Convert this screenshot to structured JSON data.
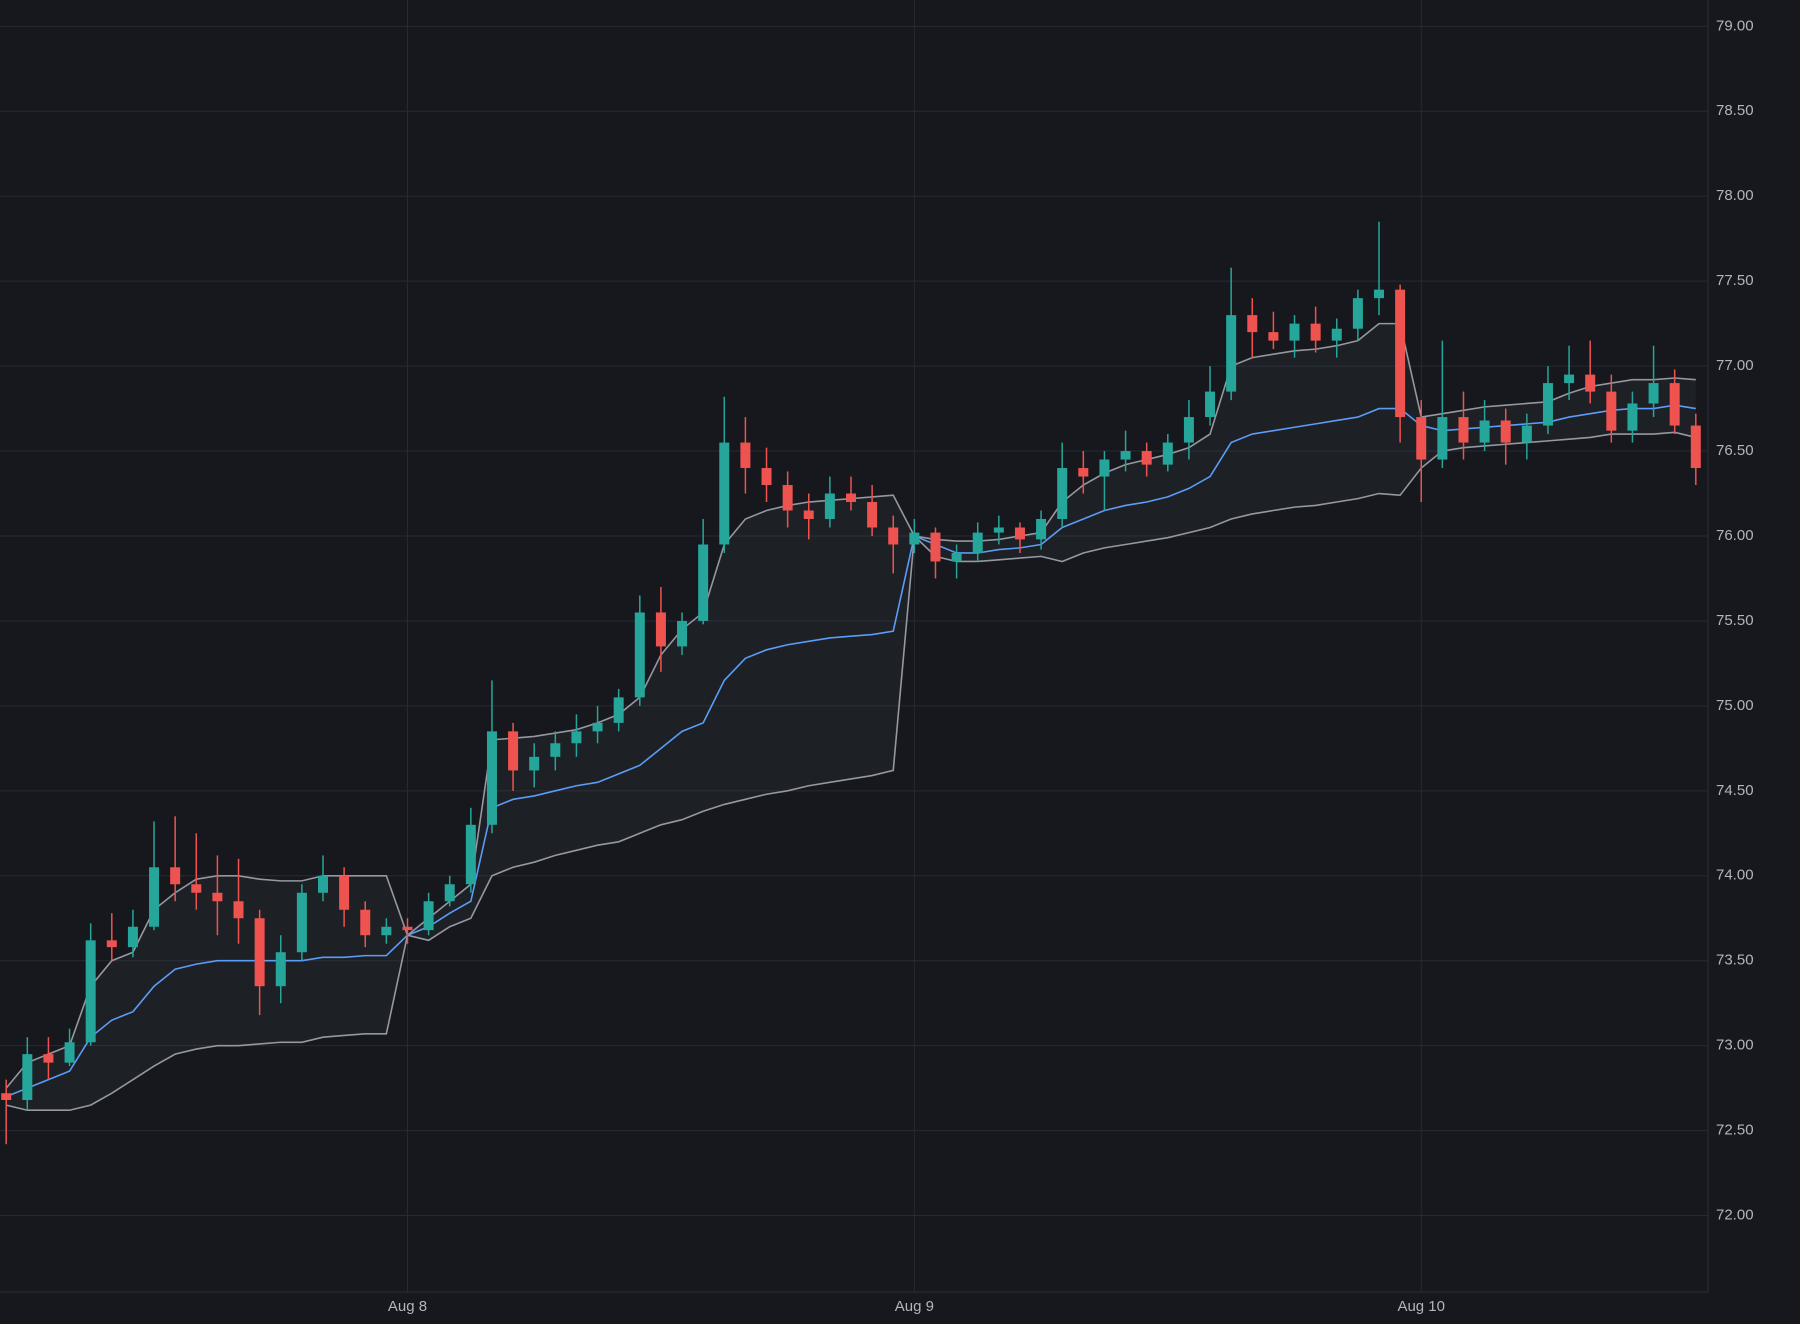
{
  "chart_data": {
    "type": "candlestick",
    "categories": [
      null,
      null,
      null,
      null,
      null,
      null,
      null,
      null,
      null,
      null,
      null,
      null,
      null,
      null,
      null,
      null,
      null,
      null,
      null,
      "Aug 8",
      null,
      null,
      null,
      null,
      null,
      null,
      null,
      null,
      null,
      null,
      null,
      null,
      null,
      null,
      null,
      null,
      null,
      null,
      null,
      null,
      null,
      null,
      null,
      "Aug 9",
      null,
      null,
      null,
      null,
      null,
      null,
      null,
      null,
      null,
      null,
      null,
      null,
      null,
      null,
      null,
      null,
      null,
      null,
      null,
      null,
      null,
      null,
      null,
      "Aug 10",
      null,
      null,
      null,
      null,
      null,
      null,
      null,
      null,
      null,
      null,
      null,
      null,
      null
    ],
    "open": [
      72.72,
      72.68,
      72.95,
      72.9,
      73.02,
      73.62,
      73.58,
      73.7,
      74.05,
      73.95,
      73.9,
      73.85,
      73.75,
      73.35,
      73.55,
      73.9,
      74.0,
      73.8,
      73.65,
      73.7,
      73.68,
      73.85,
      73.95,
      74.3,
      74.85,
      74.62,
      74.7,
      74.78,
      74.85,
      74.9,
      75.05,
      75.55,
      75.35,
      75.5,
      75.95,
      76.55,
      76.4,
      76.3,
      76.15,
      76.1,
      76.25,
      76.2,
      76.05,
      75.95,
      76.02,
      75.85,
      75.9,
      76.02,
      76.05,
      75.98,
      76.1,
      76.4,
      76.35,
      76.45,
      76.5,
      76.42,
      76.55,
      76.7,
      76.85,
      77.3,
      77.2,
      77.15,
      77.25,
      77.15,
      77.22,
      77.4,
      77.45,
      76.7,
      76.45,
      76.7,
      76.55,
      76.68,
      76.55,
      76.65,
      76.9,
      76.95,
      76.85,
      76.62,
      76.78,
      76.9,
      76.65
    ],
    "high": [
      72.8,
      73.05,
      73.05,
      73.1,
      73.72,
      73.78,
      73.8,
      74.32,
      74.35,
      74.25,
      74.12,
      74.1,
      73.8,
      73.65,
      73.95,
      74.12,
      74.05,
      73.85,
      73.75,
      73.75,
      73.9,
      74.0,
      74.4,
      75.15,
      74.9,
      74.78,
      74.85,
      74.95,
      75.0,
      75.1,
      75.65,
      75.7,
      75.55,
      76.1,
      76.82,
      76.7,
      76.52,
      76.38,
      76.25,
      76.35,
      76.35,
      76.3,
      76.12,
      76.1,
      76.05,
      75.95,
      76.08,
      76.12,
      76.08,
      76.15,
      76.55,
      76.5,
      76.5,
      76.62,
      76.55,
      76.6,
      76.8,
      77.0,
      77.58,
      77.4,
      77.32,
      77.3,
      77.35,
      77.28,
      77.45,
      77.85,
      77.48,
      76.8,
      77.15,
      76.85,
      76.8,
      76.75,
      76.72,
      77.0,
      77.12,
      77.15,
      76.95,
      76.85,
      77.12,
      76.98,
      76.72
    ],
    "low": [
      72.42,
      72.62,
      72.8,
      72.88,
      73.0,
      73.5,
      73.52,
      73.68,
      73.85,
      73.8,
      73.65,
      73.6,
      73.18,
      73.25,
      73.5,
      73.85,
      73.7,
      73.58,
      73.6,
      73.6,
      73.65,
      73.82,
      73.9,
      74.25,
      74.5,
      74.52,
      74.62,
      74.7,
      74.78,
      74.85,
      75.0,
      75.2,
      75.3,
      75.48,
      75.9,
      76.25,
      76.2,
      76.05,
      75.98,
      76.05,
      76.15,
      76.0,
      75.78,
      75.9,
      75.75,
      75.75,
      75.85,
      75.95,
      75.9,
      75.92,
      76.05,
      76.25,
      76.15,
      76.38,
      76.35,
      76.38,
      76.45,
      76.65,
      76.8,
      77.05,
      77.1,
      77.05,
      77.08,
      77.05,
      77.15,
      77.3,
      76.55,
      76.2,
      76.4,
      76.45,
      76.5,
      76.42,
      76.45,
      76.6,
      76.8,
      76.78,
      76.55,
      76.55,
      76.7,
      76.6,
      76.3
    ],
    "close": [
      72.68,
      72.95,
      72.9,
      73.02,
      73.62,
      73.58,
      73.7,
      74.05,
      73.95,
      73.9,
      73.85,
      73.75,
      73.35,
      73.55,
      73.9,
      74.0,
      73.8,
      73.65,
      73.7,
      73.68,
      73.85,
      73.95,
      74.3,
      74.85,
      74.62,
      74.7,
      74.78,
      74.85,
      74.9,
      75.05,
      75.55,
      75.35,
      75.5,
      75.95,
      76.55,
      76.4,
      76.3,
      76.15,
      76.1,
      76.25,
      76.2,
      76.05,
      75.95,
      76.02,
      75.85,
      75.9,
      76.02,
      76.05,
      75.98,
      76.1,
      76.4,
      76.35,
      76.45,
      76.5,
      76.42,
      76.55,
      76.7,
      76.85,
      77.3,
      77.2,
      77.15,
      77.25,
      77.15,
      77.22,
      77.4,
      77.45,
      76.7,
      76.45,
      76.7,
      76.55,
      76.68,
      76.55,
      76.65,
      76.9,
      76.95,
      76.85,
      76.62,
      76.78,
      76.9,
      76.65,
      76.4
    ],
    "up_color": "#26a69a",
    "down_color": "#ef5350",
    "lines": [
      {
        "color": "#5b9cf6",
        "values": [
          72.7,
          72.75,
          72.8,
          72.85,
          73.05,
          73.15,
          73.2,
          73.35,
          73.45,
          73.48,
          73.5,
          73.5,
          73.5,
          73.5,
          73.5,
          73.52,
          73.52,
          73.53,
          73.53,
          73.65,
          73.7,
          73.78,
          73.85,
          74.4,
          74.45,
          74.47,
          74.5,
          74.53,
          74.55,
          74.6,
          74.65,
          74.75,
          74.85,
          74.9,
          75.15,
          75.28,
          75.33,
          75.36,
          75.38,
          75.4,
          75.41,
          75.42,
          75.44,
          76.0,
          75.95,
          75.9,
          75.9,
          75.92,
          75.93,
          75.95,
          76.05,
          76.1,
          76.15,
          76.18,
          76.2,
          76.23,
          76.28,
          76.35,
          76.55,
          76.6,
          76.62,
          76.64,
          76.66,
          76.68,
          76.7,
          76.75,
          76.75,
          76.65,
          76.62,
          76.63,
          76.64,
          76.65,
          76.66,
          76.67,
          76.7,
          76.72,
          76.74,
          76.75,
          76.75,
          76.77,
          76.75
        ]
      },
      {
        "color": "#9598a1",
        "values": [
          72.75,
          72.9,
          72.95,
          73.0,
          73.35,
          73.5,
          73.55,
          73.8,
          73.9,
          73.98,
          74.0,
          74.0,
          73.98,
          73.97,
          73.97,
          74.0,
          74.0,
          74.0,
          74.0,
          73.65,
          73.75,
          73.85,
          73.95,
          74.8,
          74.81,
          74.82,
          74.84,
          74.86,
          74.9,
          74.95,
          75.05,
          75.3,
          75.45,
          75.55,
          75.95,
          76.1,
          76.15,
          76.18,
          76.2,
          76.21,
          76.22,
          76.23,
          76.24,
          76.0,
          75.98,
          75.97,
          75.97,
          75.98,
          76.0,
          76.02,
          76.2,
          76.3,
          76.37,
          76.42,
          76.45,
          76.48,
          76.52,
          76.6,
          77.0,
          77.05,
          77.07,
          77.09,
          77.1,
          77.12,
          77.15,
          77.25,
          77.25,
          76.7,
          76.72,
          76.74,
          76.76,
          76.77,
          76.78,
          76.79,
          76.84,
          76.88,
          76.9,
          76.92,
          76.92,
          76.93,
          76.92
        ]
      },
      {
        "color": "#9598a1",
        "values": [
          72.65,
          72.62,
          72.62,
          72.62,
          72.65,
          72.72,
          72.8,
          72.88,
          72.95,
          72.98,
          73.0,
          73.0,
          73.01,
          73.02,
          73.02,
          73.05,
          73.06,
          73.07,
          73.07,
          73.65,
          73.62,
          73.7,
          73.75,
          74.0,
          74.05,
          74.08,
          74.12,
          74.15,
          74.18,
          74.2,
          74.25,
          74.3,
          74.33,
          74.38,
          74.42,
          74.45,
          74.48,
          74.5,
          74.53,
          74.55,
          74.57,
          74.59,
          74.62,
          76.0,
          75.88,
          75.85,
          75.85,
          75.86,
          75.87,
          75.88,
          75.85,
          75.9,
          75.93,
          75.95,
          75.97,
          75.99,
          76.02,
          76.05,
          76.1,
          76.13,
          76.15,
          76.17,
          76.18,
          76.2,
          76.22,
          76.25,
          76.24,
          76.4,
          76.5,
          76.52,
          76.53,
          76.54,
          76.55,
          76.56,
          76.57,
          76.58,
          76.6,
          76.6,
          76.6,
          76.61,
          76.58
        ]
      }
    ],
    "band_fill": "rgba(120,123,134,0.08)",
    "ylim": [
      71.55,
      79.155
    ],
    "yticks": [
      {
        "value": 72,
        "label": "72.00"
      },
      {
        "value": 72.5,
        "label": "72.50"
      },
      {
        "value": 73,
        "label": "73.00"
      },
      {
        "value": 73.5,
        "label": "73.50"
      },
      {
        "value": 74,
        "label": "74.00"
      },
      {
        "value": 74.5,
        "label": "74.50"
      },
      {
        "value": 75,
        "label": "75.00"
      },
      {
        "value": 75.5,
        "label": "75.50"
      },
      {
        "value": 76,
        "label": "76.00"
      },
      {
        "value": 76.5,
        "label": "76.50"
      },
      {
        "value": 77,
        "label": "77.00"
      },
      {
        "value": 77.5,
        "label": "77.50"
      },
      {
        "value": 78,
        "label": "78.00"
      },
      {
        "value": 78.5,
        "label": "78.50"
      },
      {
        "value": 79,
        "label": "79.00"
      }
    ],
    "grid": true
  }
}
